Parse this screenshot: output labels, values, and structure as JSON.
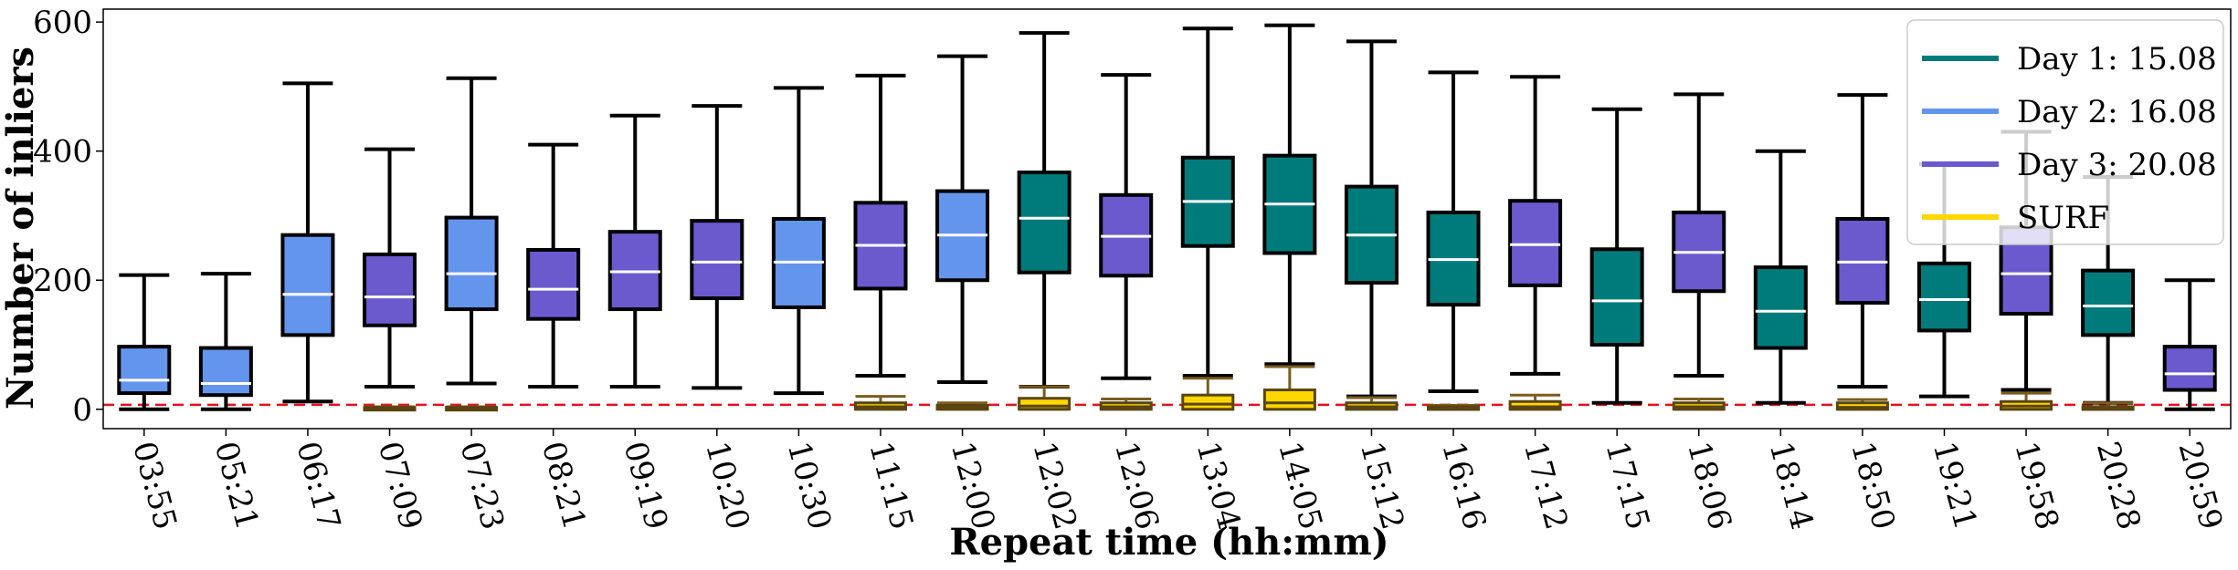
{
  "chart_data": {
    "type": "box",
    "xlabel": "Repeat time (hh:mm)",
    "ylabel": "Number of inliers",
    "ylim": [
      -30,
      620
    ],
    "yticks": [
      0,
      200,
      400,
      600
    ],
    "reference_line": {
      "y": 7,
      "color": "#e8101a",
      "style": "dashed"
    },
    "legend": {
      "placement": "top-right",
      "entries": [
        {
          "label": "Day 1: 15.08",
          "color": "#007b7b"
        },
        {
          "label": "Day 2: 16.08",
          "color": "#6495ed"
        },
        {
          "label": "Day 3: 20.08",
          "color": "#6a5acd"
        },
        {
          "label": "SURF",
          "color": "#ffd700"
        }
      ]
    },
    "colors": {
      "day1": "#007b7b",
      "day2": "#6495ed",
      "day3": "#6a5acd",
      "surf": "#ffd700"
    },
    "categories": [
      "03:55",
      "05:21",
      "06:17",
      "07:09",
      "07:23",
      "08:21",
      "09:19",
      "10:20",
      "10:30",
      "11:15",
      "12:00",
      "12:02",
      "12:06",
      "13:04",
      "14:05",
      "15:12",
      "16:16",
      "17:12",
      "17:15",
      "18:06",
      "18:14",
      "18:50",
      "19:21",
      "19:58",
      "20:28",
      "20:59"
    ],
    "series": [
      {
        "day": "day2",
        "boxes": [
          {
            "cat": "03:55",
            "whislo": 0,
            "q1": 25,
            "med": 45,
            "q3": 97,
            "whishi": 208
          },
          {
            "cat": "05:21",
            "whislo": 0,
            "q1": 22,
            "med": 40,
            "q3": 95,
            "whishi": 210
          },
          {
            "cat": "06:17",
            "whislo": 12,
            "q1": 115,
            "med": 178,
            "q3": 270,
            "whishi": 505
          },
          {
            "cat": "07:23",
            "whislo": 40,
            "q1": 155,
            "med": 210,
            "q3": 297,
            "whishi": 513
          },
          {
            "cat": "10:30",
            "whislo": 25,
            "q1": 158,
            "med": 228,
            "q3": 295,
            "whishi": 498
          },
          {
            "cat": "12:00",
            "whislo": 42,
            "q1": 200,
            "med": 270,
            "q3": 338,
            "whishi": 547
          }
        ]
      },
      {
        "day": "day3",
        "boxes": [
          {
            "cat": "07:09",
            "whislo": 35,
            "q1": 130,
            "med": 174,
            "q3": 240,
            "whishi": 403
          },
          {
            "cat": "08:21",
            "whislo": 35,
            "q1": 140,
            "med": 186,
            "q3": 247,
            "whishi": 410
          },
          {
            "cat": "09:19",
            "whislo": 35,
            "q1": 155,
            "med": 213,
            "q3": 275,
            "whishi": 455
          },
          {
            "cat": "10:20",
            "whislo": 33,
            "q1": 172,
            "med": 228,
            "q3": 292,
            "whishi": 470
          },
          {
            "cat": "11:15",
            "whislo": 52,
            "q1": 187,
            "med": 254,
            "q3": 320,
            "whishi": 517
          },
          {
            "cat": "12:06",
            "whislo": 48,
            "q1": 207,
            "med": 268,
            "q3": 332,
            "whishi": 518
          },
          {
            "cat": "17:12",
            "whislo": 55,
            "q1": 192,
            "med": 255,
            "q3": 323,
            "whishi": 515
          },
          {
            "cat": "18:06",
            "whislo": 52,
            "q1": 183,
            "med": 243,
            "q3": 305,
            "whishi": 488
          },
          {
            "cat": "18:50",
            "whislo": 35,
            "q1": 165,
            "med": 228,
            "q3": 295,
            "whishi": 487
          },
          {
            "cat": "19:58",
            "whislo": 30,
            "q1": 148,
            "med": 210,
            "q3": 282,
            "whishi": 430
          },
          {
            "cat": "20:59",
            "whislo": 0,
            "q1": 30,
            "med": 55,
            "q3": 97,
            "whishi": 200
          }
        ]
      },
      {
        "day": "day1",
        "boxes": [
          {
            "cat": "12:02",
            "whislo": 35,
            "q1": 212,
            "med": 296,
            "q3": 367,
            "whishi": 583
          },
          {
            "cat": "13:04",
            "whislo": 52,
            "q1": 253,
            "med": 322,
            "q3": 390,
            "whishi": 590
          },
          {
            "cat": "14:05",
            "whislo": 70,
            "q1": 242,
            "med": 318,
            "q3": 393,
            "whishi": 595
          },
          {
            "cat": "15:12",
            "whislo": 20,
            "q1": 196,
            "med": 270,
            "q3": 345,
            "whishi": 570
          },
          {
            "cat": "16:16",
            "whislo": 28,
            "q1": 162,
            "med": 232,
            "q3": 305,
            "whishi": 522
          },
          {
            "cat": "17:15",
            "whislo": 10,
            "q1": 100,
            "med": 168,
            "q3": 248,
            "whishi": 465
          },
          {
            "cat": "18:14",
            "whislo": 10,
            "q1": 95,
            "med": 152,
            "q3": 220,
            "whishi": 400
          },
          {
            "cat": "19:21",
            "whislo": 20,
            "q1": 122,
            "med": 170,
            "q3": 226,
            "whishi": 380
          },
          {
            "cat": "20:28",
            "whislo": 10,
            "q1": 115,
            "med": 160,
            "q3": 215,
            "whishi": 360
          }
        ]
      },
      {
        "day": "surf",
        "boxes": [
          {
            "cat": "07:09",
            "whislo": 0,
            "q1": 0,
            "med": 1,
            "q3": 3,
            "whishi": 4
          },
          {
            "cat": "07:23",
            "whislo": 0,
            "q1": 0,
            "med": 1,
            "q3": 3,
            "whishi": 4
          },
          {
            "cat": "11:15",
            "whislo": 0,
            "q1": 0,
            "med": 4,
            "q3": 10,
            "whishi": 20
          },
          {
            "cat": "12:00",
            "whislo": 0,
            "q1": 0,
            "med": 2,
            "q3": 6,
            "whishi": 10
          },
          {
            "cat": "12:02",
            "whislo": 0,
            "q1": 0,
            "med": 5,
            "q3": 17,
            "whishi": 35
          },
          {
            "cat": "12:06",
            "whislo": 0,
            "q1": 0,
            "med": 4,
            "q3": 10,
            "whishi": 16
          },
          {
            "cat": "13:04",
            "whislo": 0,
            "q1": 0,
            "med": 8,
            "q3": 22,
            "whishi": 48
          },
          {
            "cat": "14:05",
            "whislo": 0,
            "q1": 0,
            "med": 10,
            "q3": 30,
            "whishi": 66
          },
          {
            "cat": "15:12",
            "whislo": 0,
            "q1": 0,
            "med": 4,
            "q3": 10,
            "whishi": 18
          },
          {
            "cat": "16:16",
            "whislo": 0,
            "q1": 0,
            "med": 1,
            "q3": 4,
            "whishi": 6
          },
          {
            "cat": "17:12",
            "whislo": 0,
            "q1": 0,
            "med": 4,
            "q3": 12,
            "whishi": 22
          },
          {
            "cat": "18:06",
            "whislo": 0,
            "q1": 0,
            "med": 4,
            "q3": 10,
            "whishi": 16
          },
          {
            "cat": "18:50",
            "whislo": 0,
            "q1": 0,
            "med": 3,
            "q3": 10,
            "whishi": 15
          },
          {
            "cat": "19:58",
            "whislo": 0,
            "q1": 0,
            "med": 5,
            "q3": 12,
            "whishi": 25
          },
          {
            "cat": "20:28",
            "whislo": 0,
            "q1": 0,
            "med": 1,
            "q3": 4,
            "whishi": 10
          }
        ]
      }
    ]
  }
}
